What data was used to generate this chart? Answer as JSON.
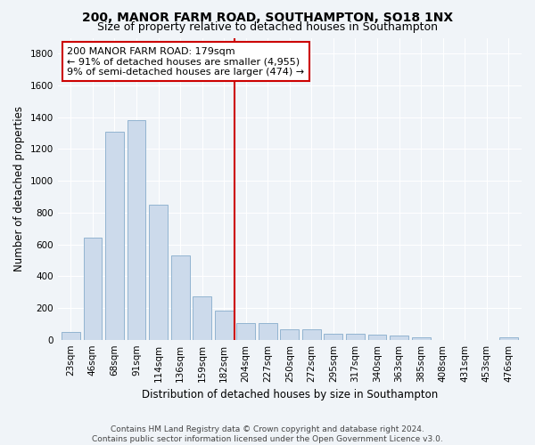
{
  "title": "200, MANOR FARM ROAD, SOUTHAMPTON, SO18 1NX",
  "subtitle": "Size of property relative to detached houses in Southampton",
  "xlabel": "Distribution of detached houses by size in Southampton",
  "ylabel": "Number of detached properties",
  "categories": [
    "23sqm",
    "46sqm",
    "68sqm",
    "91sqm",
    "114sqm",
    "136sqm",
    "159sqm",
    "182sqm",
    "204sqm",
    "227sqm",
    "250sqm",
    "272sqm",
    "295sqm",
    "317sqm",
    "340sqm",
    "363sqm",
    "385sqm",
    "408sqm",
    "431sqm",
    "453sqm",
    "476sqm"
  ],
  "values": [
    50,
    640,
    1310,
    1380,
    850,
    530,
    275,
    185,
    105,
    105,
    65,
    65,
    40,
    40,
    30,
    25,
    15,
    0,
    0,
    0,
    15
  ],
  "bar_color": "#ccdaeb",
  "bar_edge_color": "#92b4d0",
  "vline_x_index": 7.5,
  "vline_color": "#cc0000",
  "annotation_line1": "200 MANOR FARM ROAD: 179sqm",
  "annotation_line2": "← 91% of detached houses are smaller (4,955)",
  "annotation_line3": "9% of semi-detached houses are larger (474) →",
  "annotation_box_color": "#ffffff",
  "annotation_box_edge": "#cc0000",
  "ylim": [
    0,
    1900
  ],
  "yticks": [
    0,
    200,
    400,
    600,
    800,
    1000,
    1200,
    1400,
    1600,
    1800
  ],
  "bg_color": "#f0f4f8",
  "plot_bg_color": "#f0f4f8",
  "footer_line1": "Contains HM Land Registry data © Crown copyright and database right 2024.",
  "footer_line2": "Contains public sector information licensed under the Open Government Licence v3.0.",
  "title_fontsize": 10,
  "subtitle_fontsize": 9,
  "xlabel_fontsize": 8.5,
  "ylabel_fontsize": 8.5,
  "tick_fontsize": 7.5,
  "footer_fontsize": 6.5,
  "annotation_fontsize": 8
}
